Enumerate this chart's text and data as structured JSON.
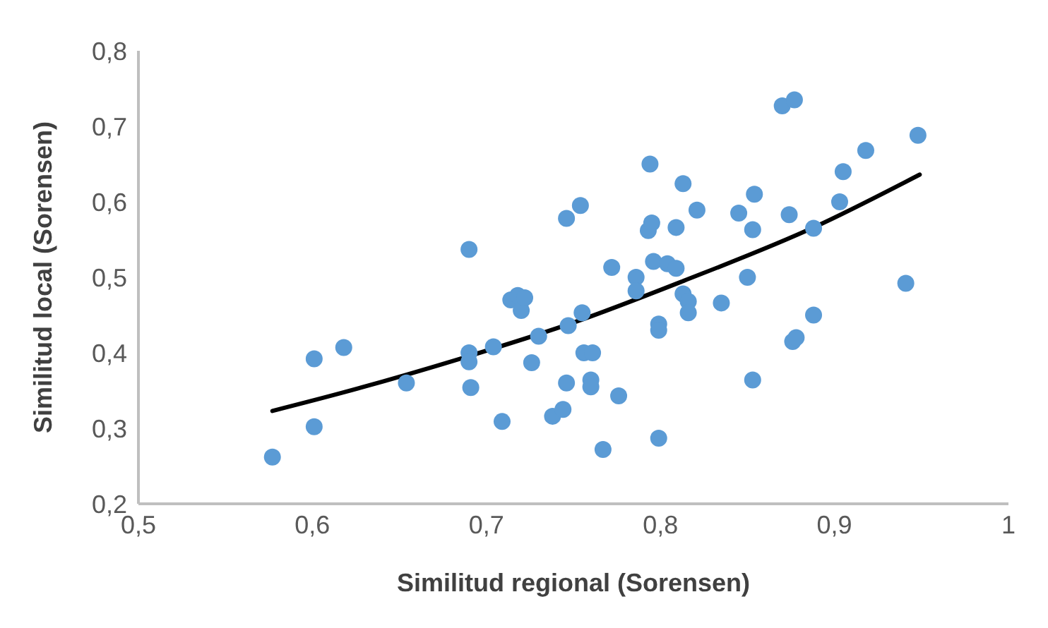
{
  "chart_data": {
    "type": "scatter",
    "xlabel": "Similitud regional (Sorensen)",
    "ylabel": "Similitud local (Sorensen)",
    "xlim": [
      0.5,
      1
    ],
    "xticks": [
      {
        "value": 0.5,
        "label": "0,5"
      },
      {
        "value": 0.6,
        "label": "0,6"
      },
      {
        "value": 0.7,
        "label": "0,7"
      },
      {
        "value": 0.8,
        "label": "0,8"
      },
      {
        "value": 0.9,
        "label": "0,9"
      },
      1
    ],
    "ylim": [
      0.2,
      0.8
    ],
    "yticks": [
      {
        "value": 0.2,
        "label": "0,2"
      },
      {
        "value": 0.3,
        "label": "0,3"
      },
      {
        "value": 0.4,
        "label": "0,4"
      },
      {
        "value": 0.5,
        "label": "0,5"
      },
      {
        "value": 0.6,
        "label": "0,6"
      },
      {
        "value": 0.7,
        "label": "0,7"
      },
      {
        "value": 0.8,
        "label": "0,8"
      }
    ],
    "grid": false,
    "legend": false,
    "marker": "circle",
    "series": [
      {
        "color": "#5b9bd5",
        "x": [
          0.577,
          0.601,
          0.601,
          0.618,
          0.654,
          0.69,
          0.69,
          0.69,
          0.691,
          0.704,
          0.709,
          0.714,
          0.718,
          0.72,
          0.722,
          0.726,
          0.73,
          0.738,
          0.744,
          0.746,
          0.746,
          0.747,
          0.754,
          0.755,
          0.756,
          0.761,
          0.76,
          0.76,
          0.767,
          0.772,
          0.776,
          0.786,
          0.786,
          0.794,
          0.793,
          0.795,
          0.796,
          0.799,
          0.799,
          0.799,
          0.804,
          0.809,
          0.809,
          0.813,
          0.813,
          0.816,
          0.816,
          0.821,
          0.835,
          0.845,
          0.85,
          0.853,
          0.854,
          0.853,
          0.87,
          0.877,
          0.874,
          0.876,
          0.878,
          0.888,
          0.888,
          0.903,
          0.905,
          0.918,
          0.941,
          0.948
        ],
        "values": [
          0.262,
          0.392,
          0.302,
          0.407,
          0.36,
          0.537,
          0.4,
          0.388,
          0.354,
          0.408,
          0.309,
          0.47,
          0.476,
          0.456,
          0.473,
          0.387,
          0.422,
          0.316,
          0.325,
          0.578,
          0.36,
          0.436,
          0.595,
          0.453,
          0.4,
          0.4,
          0.364,
          0.355,
          0.272,
          0.513,
          0.343,
          0.5,
          0.482,
          0.65,
          0.562,
          0.572,
          0.521,
          0.438,
          0.43,
          0.287,
          0.518,
          0.512,
          0.566,
          0.624,
          0.478,
          0.468,
          0.453,
          0.589,
          0.466,
          0.585,
          0.5,
          0.563,
          0.61,
          0.364,
          0.727,
          0.735,
          0.583,
          0.415,
          0.42,
          0.45,
          0.565,
          0.6,
          0.64,
          0.668,
          0.492,
          0.688
        ]
      },
      {
        "type": "line",
        "color": "#000000",
        "marker": "none",
        "line_style": "solid",
        "x": [
          0.577,
          0.617,
          0.689,
          0.75,
          0.813,
          0.889,
          0.949
        ],
        "values": [
          0.323,
          0.347,
          0.395,
          0.44,
          0.495,
          0.567,
          0.636
        ]
      }
    ]
  }
}
